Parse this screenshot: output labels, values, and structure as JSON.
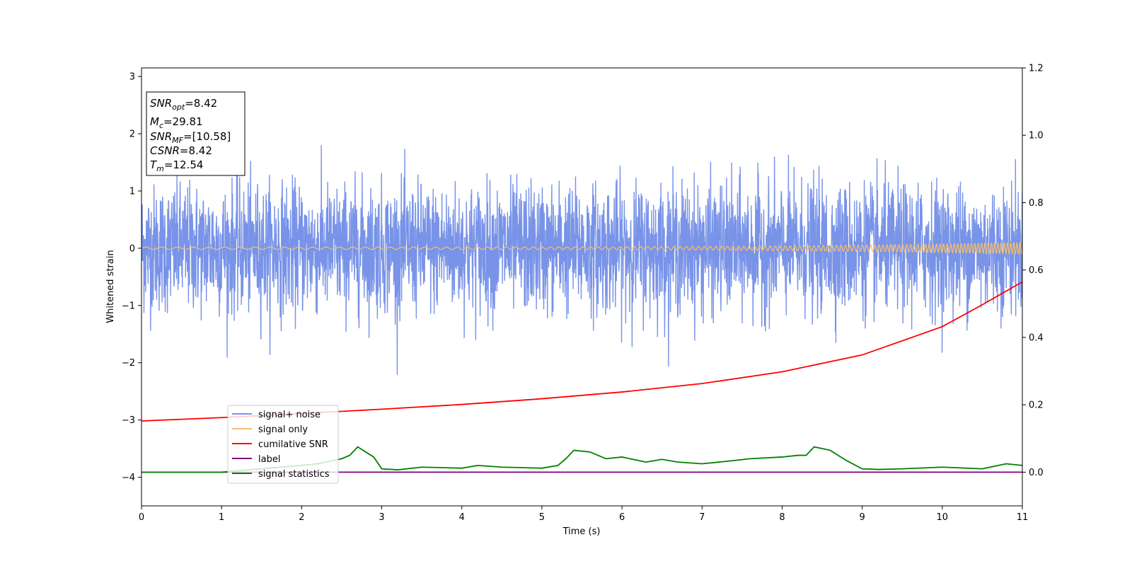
{
  "chart_data": {
    "type": "line",
    "xlabel": "Time (s)",
    "ylabel": "Whitened strain",
    "xlim": [
      0,
      11
    ],
    "ylim": [
      -4.5,
      3.15
    ],
    "y2lim": [
      -0.1,
      1.2
    ],
    "xticks": [
      "0",
      "1",
      "2",
      "3",
      "4",
      "5",
      "6",
      "7",
      "8",
      "9",
      "10",
      "11"
    ],
    "yticks": [
      "−4",
      "−3",
      "−2",
      "−1",
      "0",
      "1",
      "2",
      "3"
    ],
    "y2ticks": [
      "0.0",
      "0.2",
      "0.4",
      "0.6",
      "0.8",
      "1.0",
      "1.2"
    ],
    "legend_position": "lower-left",
    "info_box": {
      "snr_opt": {
        "sym": "SNR",
        "sub": "opt",
        "value": "=8.42"
      },
      "mc": {
        "sym": "M",
        "sub": "c",
        "value": "=29.81"
      },
      "snr_mf": {
        "sym": "SNR",
        "sub": "MF",
        "value": "=[10.58]"
      },
      "csnr": {
        "sym": "CSNR",
        "value": "=8.42"
      },
      "tm": {
        "sym": "T",
        "sub": "m",
        "value": "=12.54"
      }
    },
    "series": [
      {
        "name": "signal+ noise",
        "color": "#7893e8",
        "axis": "left",
        "kind": "noise",
        "noise_sigma": 0.55,
        "envelope_max": 2.4,
        "envelope_min": -2.4
      },
      {
        "name": "signal only",
        "color": "#f5bd6a",
        "axis": "left",
        "kind": "chirp",
        "amplitude_start": 0.02,
        "amplitude_end": 0.1
      },
      {
        "name": "cumilative SNR",
        "color": "#ff0000",
        "axis": "right",
        "x": [
          0,
          1,
          2,
          3,
          4,
          5,
          6,
          7,
          8,
          9,
          10,
          10.5,
          11
        ],
        "y": [
          0.152,
          0.162,
          0.174,
          0.187,
          0.201,
          0.218,
          0.238,
          0.263,
          0.298,
          0.348,
          0.432,
          0.497,
          0.565
        ]
      },
      {
        "name": "label",
        "color": "#800080",
        "axis": "right",
        "x": [
          0,
          11
        ],
        "y": [
          0.0,
          0.0
        ]
      },
      {
        "name": "signal statistics",
        "color": "#008000",
        "axis": "right",
        "x": [
          0,
          0.5,
          1.0,
          1.5,
          2.0,
          2.2,
          2.4,
          2.5,
          2.6,
          2.7,
          2.8,
          2.9,
          3.0,
          3.2,
          3.5,
          4.0,
          4.2,
          4.5,
          5.0,
          5.2,
          5.3,
          5.4,
          5.6,
          5.8,
          6.0,
          6.3,
          6.5,
          6.7,
          7.0,
          7.3,
          7.6,
          8.0,
          8.2,
          8.3,
          8.4,
          8.6,
          8.8,
          9.0,
          9.2,
          9.5,
          10.0,
          10.5,
          10.8,
          11.0
        ],
        "y": [
          0.0,
          0.0,
          0.0,
          0.01,
          0.02,
          0.025,
          0.035,
          0.04,
          0.05,
          0.075,
          0.06,
          0.045,
          0.01,
          0.007,
          0.015,
          0.012,
          0.02,
          0.015,
          0.012,
          0.02,
          0.04,
          0.065,
          0.06,
          0.04,
          0.045,
          0.03,
          0.038,
          0.03,
          0.025,
          0.032,
          0.04,
          0.045,
          0.05,
          0.05,
          0.075,
          0.065,
          0.035,
          0.01,
          0.008,
          0.01,
          0.015,
          0.01,
          0.025,
          0.02
        ]
      }
    ]
  }
}
